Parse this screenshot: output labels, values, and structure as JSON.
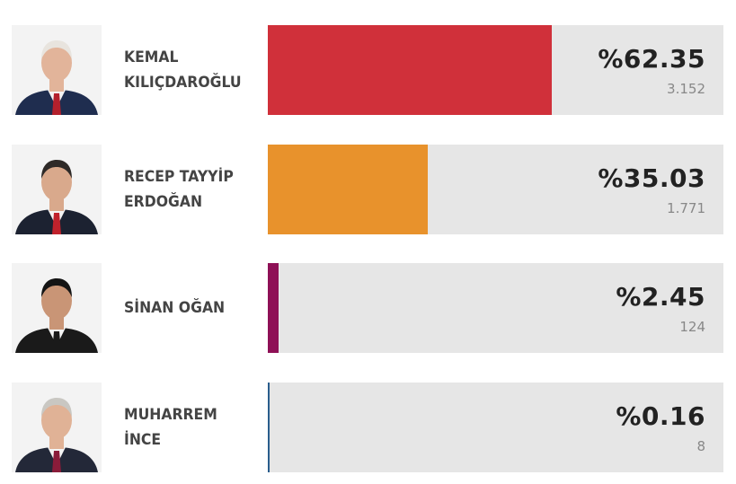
{
  "chart_data": {
    "type": "bar",
    "orientation": "horizontal",
    "categories": [
      "KEMAL KILIÇDAROĞLU",
      "RECEP TAYYİP ERDOĞAN",
      "SİNAN OĞAN",
      "MUHARREM İNCE"
    ],
    "values": [
      62.35,
      35.03,
      2.45,
      0.16
    ],
    "xlim": [
      0,
      100
    ],
    "grid": false
  },
  "candidates": [
    {
      "name_line1": "KEMAL",
      "name_line2": "KILIÇDAROĞLU",
      "percent_label": "%62.35",
      "percent": 62.35,
      "votes_label": "3.152",
      "color": "#d0303a",
      "suit": "#1f2d4f",
      "tie": "#b3202c",
      "hair": "#e8e4de",
      "skin": "#e2b49a"
    },
    {
      "name_line1": "RECEP TAYYİP",
      "name_line2": "ERDOĞAN",
      "percent_label": "%35.03",
      "percent": 35.03,
      "votes_label": "1.771",
      "color": "#e8922c",
      "suit": "#1c2231",
      "tie": "#c0222c",
      "hair": "#2e2a28",
      "skin": "#d9a98c"
    },
    {
      "name_line1": "SİNAN OĞAN",
      "name_line2": "",
      "percent_label": "%2.45",
      "percent": 2.45,
      "votes_label": "124",
      "color": "#8e1056",
      "suit": "#1a1a1a",
      "tie": "#1a1a1a",
      "hair": "#141414",
      "skin": "#c99576"
    },
    {
      "name_line1": "MUHARREM",
      "name_line2": "İNCE",
      "percent_label": "%0.16",
      "percent": 0.16,
      "votes_label": "8",
      "color": "#2a5d8c",
      "suit": "#232838",
      "tie": "#8a1c3a",
      "hair": "#c9c7c2",
      "skin": "#e0b296"
    }
  ]
}
